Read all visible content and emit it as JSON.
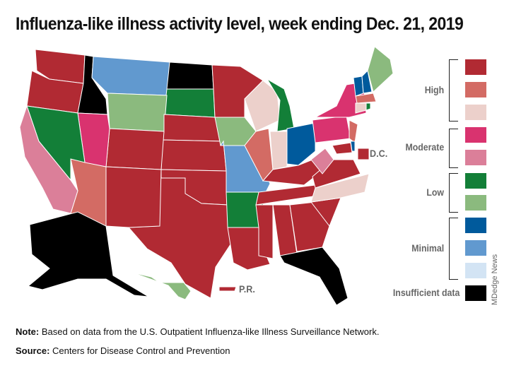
{
  "title": "Influenza-like illness activity level, week ending Dec. 21, 2019",
  "legend": {
    "groups": [
      {
        "label": "High",
        "levels": [
          "#b12a33",
          "#d36b64",
          "#ecd0cb"
        ]
      },
      {
        "label": "Moderate",
        "levels": [
          "#d9336f",
          "#db7f99"
        ]
      },
      {
        "label": "Low",
        "levels": [
          "#137f38",
          "#8bba7e"
        ]
      },
      {
        "label": "Minimal",
        "levels": [
          "#005a9c",
          "#6199cf",
          "#d3e4f4"
        ]
      }
    ],
    "insufficient": {
      "label": "Insufficient data",
      "color": "#000000"
    }
  },
  "map_labels": {
    "dc": "D.C.",
    "pr": "P.R."
  },
  "states": {
    "WA": "#b12a33",
    "OR": "#b12a33",
    "ID": "#000000",
    "MT": "#6199cf",
    "ND": "#000000",
    "SD": "#137f38",
    "WY": "#8bba7e",
    "NE": "#b12a33",
    "KS": "#b12a33",
    "OK": "#b12a33",
    "TX": "#b12a33",
    "CO": "#b12a33",
    "NM": "#b12a33",
    "AZ": "#d36b64",
    "UT": "#d9336f",
    "NV": "#137f38",
    "CA": "#db7f99",
    "MN": "#b12a33",
    "IA": "#8bba7e",
    "MO": "#6199cf",
    "AR": "#137f38",
    "LA": "#b12a33",
    "WI": "#ecd0cb",
    "IL": "#d36b64",
    "MI": "#137f38",
    "IN": "#ecd0cb",
    "OH": "#005a9c",
    "KY": "#b12a33",
    "TN": "#b12a33",
    "MS": "#b12a33",
    "AL": "#b12a33",
    "GA": "#b12a33",
    "FL": "#000000",
    "SC": "#b12a33",
    "NC": "#ecd0cb",
    "VA": "#b12a33",
    "WV": "#db7f99",
    "PA": "#d9336f",
    "NY": "#d9336f",
    "NJ": "#d36b64",
    "MD": "#b12a33",
    "DE": "#005a9c",
    "VT": "#005a9c",
    "NH": "#005a9c",
    "ME": "#8bba7e",
    "MA": "#d36b64",
    "CT": "#ecd0cb",
    "RI": "#137f38",
    "AK": "#000000",
    "HI": "#8bba7e",
    "PR": "#b12a33",
    "DC": "#b12a33"
  },
  "credit": "MDedge News",
  "note": {
    "label": "Note:",
    "text": " Based on data from the U.S. Outpatient Influenza-like Illness Surveillance Network."
  },
  "source": {
    "label": "Source:",
    "text": " Centers for Disease Control and Prevention"
  }
}
